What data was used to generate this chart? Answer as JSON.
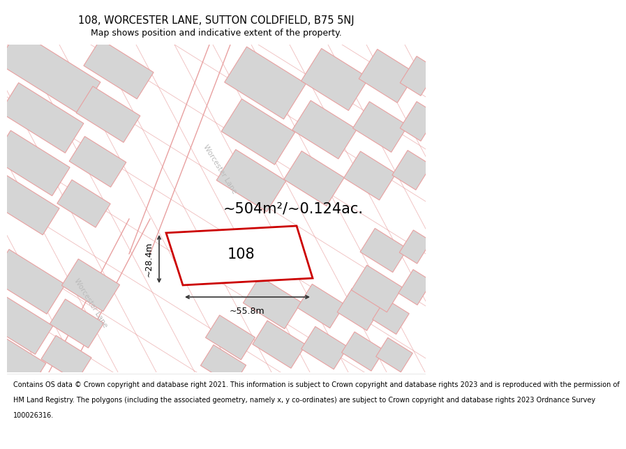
{
  "title_line1": "108, WORCESTER LANE, SUTTON COLDFIELD, B75 5NJ",
  "title_line2": "Map shows position and indicative extent of the property.",
  "footer_lines": [
    "Contains OS data © Crown copyright and database right 2021. This information is subject to Crown copyright and database rights 2023 and is reproduced with the permission of",
    "HM Land Registry. The polygons (including the associated geometry, namely x, y co-ordinates) are subject to Crown copyright and database rights 2023 Ordnance Survey",
    "100026316."
  ],
  "area_text": "~504m²/~0.124ac.",
  "label_108": "108",
  "dim_width": "~55.8m",
  "dim_height": "~28.4m",
  "road_label_upper": "Worcester Lane",
  "road_label_lower": "Worcester Lane",
  "map_bg": "#eeeeee",
  "building_fill": "#d5d5d5",
  "building_edge": "#e8a0a0",
  "highlight_fill": "#ffffff",
  "highlight_edge": "#cc0000",
  "dim_color": "#333333",
  "road_line_color": "#e8a0a0",
  "title_fontsize": 10.5,
  "subtitle_fontsize": 9,
  "footer_fontsize": 7.0,
  "area_fontsize": 15,
  "label_fontsize": 15,
  "dim_fontsize": 9
}
